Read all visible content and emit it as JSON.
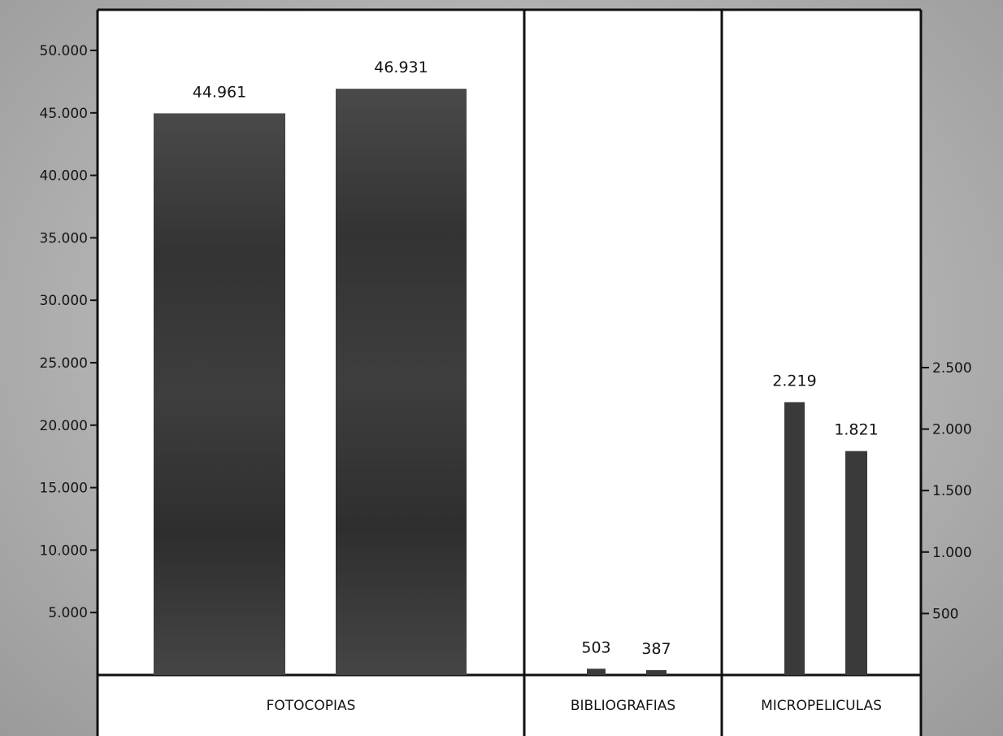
{
  "chart_data": {
    "type": "bar",
    "title": "",
    "panels": [
      {
        "category": "FOTOCOPIAS",
        "axis": "left",
        "values": [
          44961,
          46931
        ],
        "labels": [
          "44.961",
          "46.931"
        ]
      },
      {
        "category": "BIBLIOGRAFIAS",
        "axis": "left",
        "values": [
          503,
          387
        ],
        "labels": [
          "503",
          "387"
        ]
      },
      {
        "category": "MICROPELICULAS",
        "axis": "right",
        "values": [
          2219,
          1821
        ],
        "labels": [
          "2.219",
          "1.821"
        ]
      }
    ],
    "left_axis": {
      "ylim": [
        0,
        50000
      ],
      "ticks": [
        5000,
        10000,
        15000,
        20000,
        25000,
        30000,
        35000,
        40000,
        45000,
        50000
      ],
      "tick_labels": [
        "5.000",
        "10.000",
        "15.000",
        "20.000",
        "25.000",
        "30.000",
        "35.000",
        "40.000",
        "45.000",
        "50.000"
      ]
    },
    "right_axis": {
      "ylim": [
        0,
        2500
      ],
      "ticks": [
        500,
        1000,
        1500,
        2000,
        2500
      ],
      "tick_labels": [
        "500",
        "1.000",
        "1.500",
        "2.000",
        "2.500"
      ]
    },
    "bar_color": "#3a3a3a",
    "panel_background": "#ffffff",
    "grid": false,
    "legend": "none"
  }
}
